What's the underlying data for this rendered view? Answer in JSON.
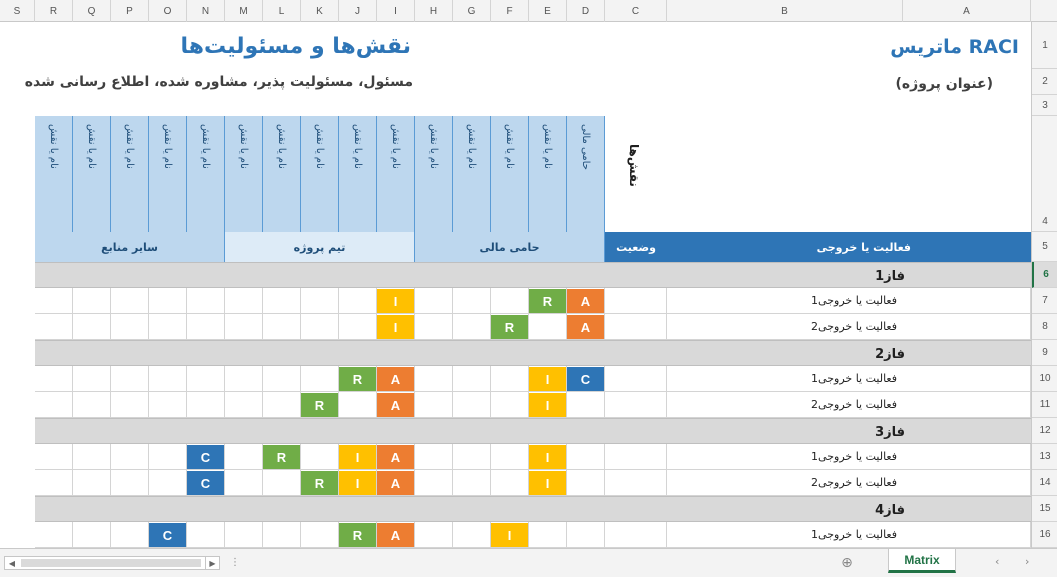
{
  "columns": [
    "S",
    "R",
    "Q",
    "P",
    "O",
    "N",
    "M",
    "L",
    "K",
    "J",
    "I",
    "H",
    "G",
    "F",
    "E",
    "D",
    "C",
    "B",
    "A"
  ],
  "rows": [
    "1",
    "2",
    "3",
    "4",
    "5",
    "6",
    "7",
    "8",
    "9",
    "10",
    "11",
    "12",
    "13",
    "14",
    "15",
    "16"
  ],
  "selected_row": "6",
  "sheet": {
    "title_raci": "ماتریس RACI",
    "title_main": "نقش‌ها و مسئولیت‌ها",
    "project_title": "(عنوان پروژه)",
    "legend_text": "مسئول، مسئولیت پذیر، مشاوره شده، اطلاع رسانی شده",
    "roles_label": "نقش‌ها",
    "role_names": [
      "نام یا نقش",
      "نام یا نقش",
      "نام یا نقش",
      "نام یا نقش",
      "نام یا نقش",
      "نام یا نقش",
      "نام یا نقش",
      "نام یا نقش",
      "نام یا نقش",
      "نام یا نقش",
      "نام یا نقش",
      "نام یا نقش",
      "نام یا نقش",
      "نام یا نقش",
      "حامی مالی"
    ],
    "group_labels": {
      "other_resources": "سایر منابع",
      "project_team": "تیم پروژه",
      "sponsor": "حامی مالی"
    },
    "header_status": "وضعیت",
    "header_activity": "فعالیت یا خروجی",
    "phases": [
      {
        "label": "فاز1",
        "tasks": [
          "فعالیت یا خروجی1",
          "فعالیت یا خروجی2"
        ]
      },
      {
        "label": "فاز2",
        "tasks": [
          "فعالیت یا خروجی1",
          "فعالیت یا خروجی2"
        ]
      },
      {
        "label": "فاز3",
        "tasks": [
          "فعالیت یا خروجی1",
          "فعالیت یا خروجی2"
        ]
      },
      {
        "label": "فاز4",
        "tasks": [
          "فعالیت یا خروجی1"
        ]
      }
    ]
  },
  "raci_letters": {
    "A": "A",
    "R": "R",
    "C": "C",
    "I": "I"
  },
  "colors": {
    "A": "#ed7d31",
    "R": "#70ad47",
    "C": "#2e75b6",
    "I": "#ffc000",
    "accent": "#2e75b6"
  },
  "tabs": {
    "active": "Matrix",
    "add_icon": "⊕"
  }
}
